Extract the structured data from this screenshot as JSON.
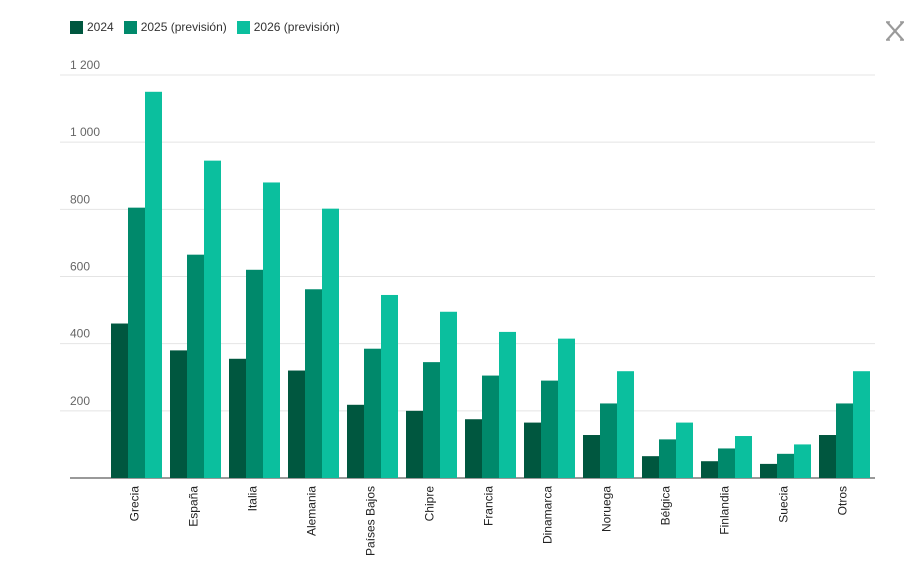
{
  "colors": {
    "s2024": "#00573f",
    "s2025": "#00896b",
    "s2026": "#0bbf9e",
    "grid": "#e4e4e4",
    "axis": "#333333"
  },
  "icons": {
    "close": "x-close-icon"
  },
  "chart_data": {
    "type": "bar",
    "categories": [
      "Grecia",
      "España",
      "Italia",
      "Alemania",
      "Países Bajos",
      "Chipre",
      "Francia",
      "Dinamarca",
      "Noruega",
      "Bélgica",
      "Finlandia",
      "Suecia",
      "Otros"
    ],
    "series": [
      {
        "name": "2024",
        "values": [
          460,
          380,
          355,
          320,
          218,
          200,
          175,
          165,
          128,
          65,
          50,
          42,
          128
        ]
      },
      {
        "name": "2025 (previsión)",
        "values": [
          805,
          665,
          620,
          562,
          385,
          345,
          305,
          290,
          222,
          115,
          88,
          72,
          222
        ]
      },
      {
        "name": "2026 (previsión)",
        "values": [
          1150,
          945,
          880,
          802,
          545,
          495,
          435,
          415,
          318,
          165,
          125,
          100,
          318
        ]
      }
    ],
    "yticks": [
      200,
      400,
      600,
      800,
      1000,
      1200
    ],
    "ytick_labels": [
      "200",
      "400",
      "600",
      "800",
      "1 000",
      "1 200"
    ],
    "ylim": [
      0,
      1200
    ],
    "grid": true,
    "legend": "top-left"
  }
}
